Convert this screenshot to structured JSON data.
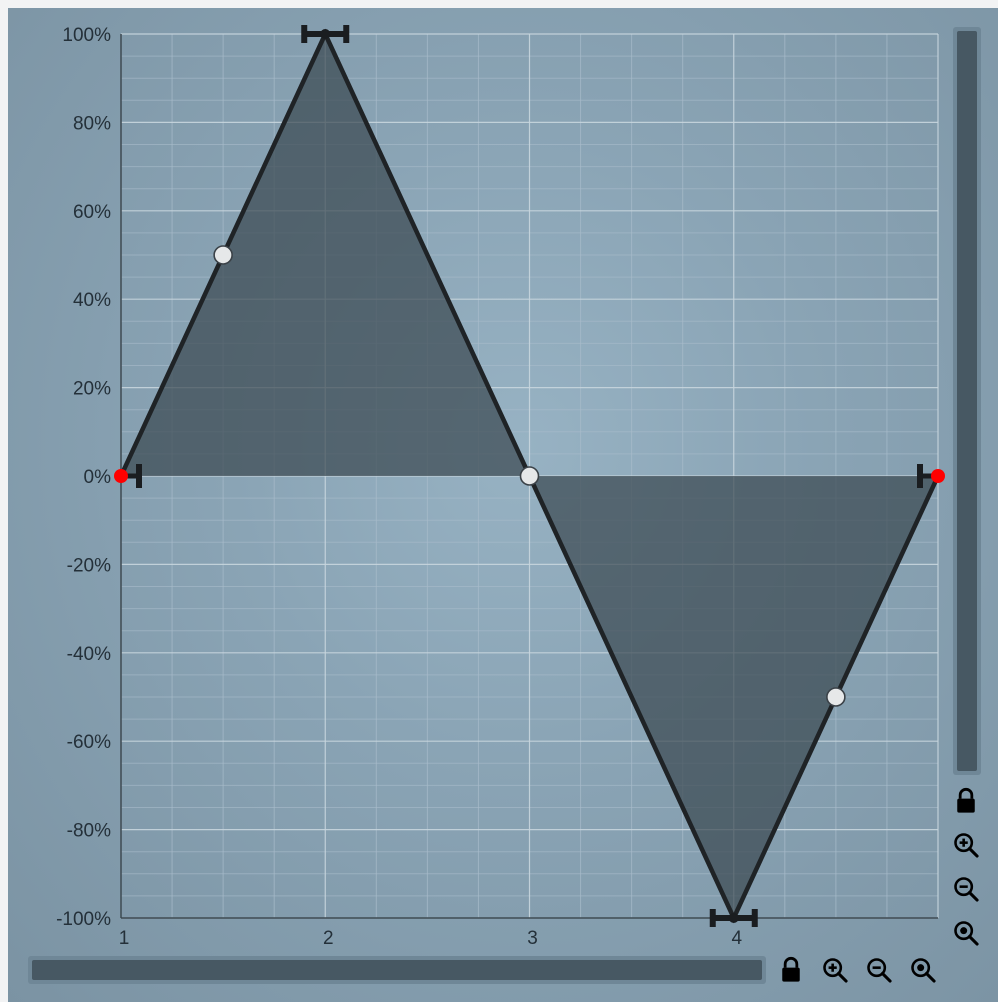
{
  "chart_data": {
    "type": "line",
    "x_ticks": [
      "1",
      "2",
      "3",
      "4"
    ],
    "y_ticks": [
      "100%",
      "80%",
      "60%",
      "40%",
      "20%",
      "0%",
      "-20%",
      "-40%",
      "-60%",
      "-80%",
      "-100%"
    ],
    "xlim": [
      1,
      5
    ],
    "ylim": [
      -100,
      100
    ],
    "grid": true,
    "points": [
      {
        "x": 1,
        "y": 0,
        "kind": "endpoint"
      },
      {
        "x": 2,
        "y": 100,
        "kind": "node"
      },
      {
        "x": 3,
        "y": 0,
        "kind": "node"
      },
      {
        "x": 4,
        "y": -100,
        "kind": "node"
      },
      {
        "x": 5,
        "y": 0,
        "kind": "endpoint"
      }
    ],
    "curve_handles": [
      {
        "x": 1.5,
        "y": 50
      },
      {
        "x": 3,
        "y": 0
      },
      {
        "x": 4.5,
        "y": -50
      }
    ],
    "colors": {
      "curve": "#1f2326",
      "fill": "#3c4a52",
      "endpoint": "#ff0000",
      "handle": "#e6e8e9",
      "grid_major": "#c8d6de",
      "grid_minor": "#a9bccb"
    }
  },
  "controls": {
    "vertical_lock_icon": "lock-icon",
    "vertical_zoom_in_icon": "zoom-in-icon",
    "vertical_zoom_out_icon": "zoom-out-icon",
    "vertical_zoom_reset_icon": "zoom-reset-icon",
    "horizontal_lock_icon": "lock-icon",
    "horizontal_zoom_in_icon": "zoom-in-icon",
    "horizontal_zoom_out_icon": "zoom-out-icon",
    "horizontal_zoom_reset_icon": "zoom-reset-icon"
  }
}
